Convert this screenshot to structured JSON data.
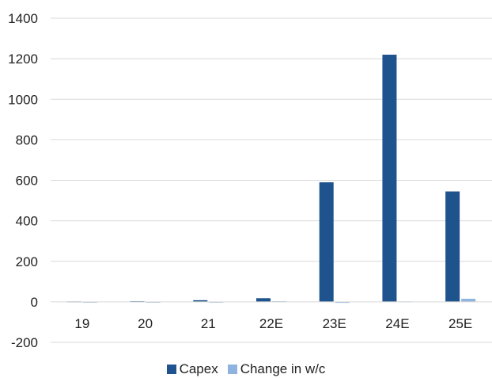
{
  "chart_data": {
    "type": "bar",
    "categories": [
      "19",
      "20",
      "21",
      "22E",
      "23E",
      "24E",
      "25E"
    ],
    "series": [
      {
        "name": "Capex",
        "color": "#1f538d",
        "values": [
          2,
          3,
          8,
          18,
          590,
          1220,
          545
        ]
      },
      {
        "name": "Change in w/c",
        "color": "#8fb3e0",
        "values": [
          0,
          0,
          0,
          3,
          -5,
          2,
          15
        ]
      }
    ],
    "ylim": [
      -200,
      1400
    ],
    "yticks": [
      -200,
      0,
      200,
      400,
      600,
      800,
      1000,
      1200,
      1400
    ],
    "grid": true,
    "legend_position": "bottom"
  }
}
